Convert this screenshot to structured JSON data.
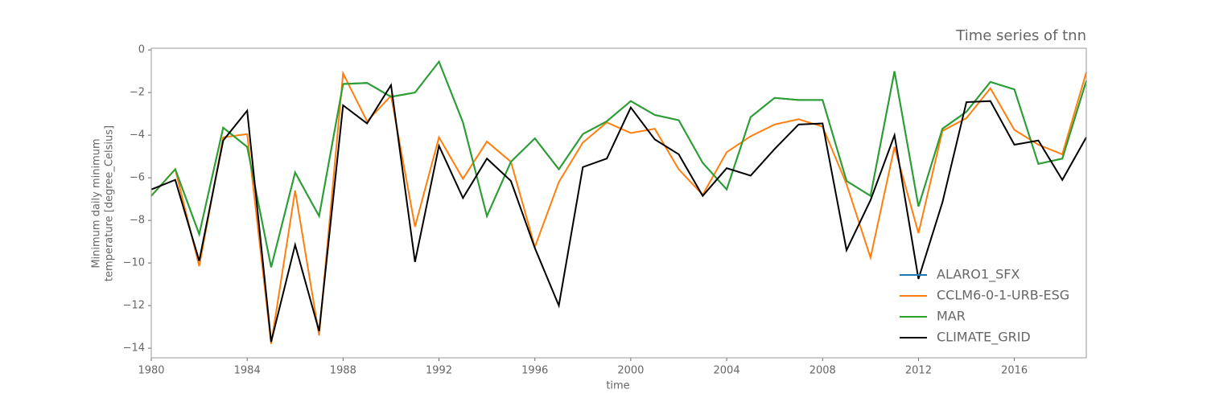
{
  "chart_data": {
    "type": "line",
    "title": "Time series of tnn",
    "xlabel": "time",
    "ylabel": [
      "Minimum daily minimum",
      "temperature [degree_Celsius]"
    ],
    "x": [
      1980,
      1981,
      1982,
      1983,
      1984,
      1985,
      1986,
      1987,
      1988,
      1989,
      1990,
      1991,
      1992,
      1993,
      1994,
      1995,
      1996,
      1997,
      1998,
      1999,
      2000,
      2001,
      2002,
      2003,
      2004,
      2005,
      2006,
      2007,
      2008,
      2009,
      2010,
      2011,
      2012,
      2013,
      2014,
      2015,
      2016,
      2017,
      2018,
      2019
    ],
    "series": [
      {
        "name": "ALARO1_SFX",
        "color": "#1f77b4",
        "values": [
          -6.85,
          -5.6,
          -8.65,
          -3.65,
          -4.55,
          -10.2,
          -5.75,
          -7.8,
          -1.6,
          -1.55,
          -2.2,
          -2.0,
          -0.55,
          -3.4,
          -7.8,
          -5.25,
          -4.15,
          -5.6,
          -3.95,
          -3.35,
          -2.4,
          -3.05,
          -3.3,
          -5.3,
          -6.55,
          -3.15,
          -2.25,
          -2.35,
          -2.35,
          -6.15,
          -6.85,
          -1.0,
          -7.35,
          -3.7,
          -2.9,
          -1.5,
          -1.85,
          -5.35,
          -5.1,
          -1.45
        ]
      },
      {
        "name": "CCLM6-0-1-URB-ESG",
        "color": "#ff7f0e",
        "values": [
          -6.85,
          -5.6,
          -10.15,
          -4.1,
          -3.95,
          -13.8,
          -6.6,
          -13.4,
          -1.1,
          -3.35,
          -2.15,
          -8.3,
          -4.1,
          -6.05,
          -4.3,
          -5.25,
          -9.25,
          -6.2,
          -4.35,
          -3.4,
          -3.9,
          -3.7,
          -5.6,
          -6.8,
          -4.8,
          -4.05,
          -3.5,
          -3.25,
          -3.6,
          -6.3,
          -9.75,
          -4.55,
          -8.6,
          -3.8,
          -3.2,
          -1.8,
          -3.75,
          -4.45,
          -4.9,
          -1.05
        ]
      },
      {
        "name": "MAR",
        "color": "#2ca02c",
        "values": [
          -6.85,
          -5.6,
          -8.65,
          -3.65,
          -4.55,
          -10.2,
          -5.75,
          -7.8,
          -1.6,
          -1.55,
          -2.2,
          -2.0,
          -0.55,
          -3.4,
          -7.8,
          -5.25,
          -4.15,
          -5.6,
          -3.95,
          -3.35,
          -2.4,
          -3.05,
          -3.3,
          -5.3,
          -6.55,
          -3.15,
          -2.25,
          -2.35,
          -2.35,
          -6.15,
          -6.85,
          -1.0,
          -7.35,
          -3.7,
          -2.9,
          -1.5,
          -1.85,
          -5.35,
          -5.1,
          -1.45
        ]
      },
      {
        "name": "CLIMATE_GRID",
        "color": "#000000",
        "values": [
          -6.55,
          -6.1,
          -9.9,
          -4.25,
          -2.85,
          -13.7,
          -9.15,
          -13.2,
          -2.6,
          -3.45,
          -1.65,
          -9.95,
          -4.5,
          -6.95,
          -5.1,
          -6.15,
          -9.3,
          -12.0,
          -5.5,
          -5.1,
          -2.7,
          -4.2,
          -4.9,
          -6.85,
          -5.55,
          -5.9,
          -4.65,
          -3.5,
          -3.45,
          -9.4,
          -7.05,
          -4.0,
          -10.75,
          -7.15,
          -2.45,
          -2.4,
          -4.45,
          -4.25,
          -6.1,
          -4.1
        ]
      }
    ],
    "xlim": [
      1980,
      2019
    ],
    "xticks": [
      1980,
      1984,
      1988,
      1992,
      1996,
      2000,
      2004,
      2008,
      2012,
      2016
    ],
    "ylim": [
      -14.45,
      0.08
    ],
    "yticks": [
      0,
      {
        "value": -2,
        "label": "−2"
      },
      {
        "value": -4,
        "label": "−4"
      },
      {
        "value": -6,
        "label": "−6"
      },
      {
        "value": -8,
        "label": "−8"
      },
      {
        "value": -10,
        "label": "−10"
      },
      {
        "value": -12,
        "label": "−12"
      },
      {
        "value": -14,
        "label": "−14"
      }
    ],
    "legend": "lower right"
  }
}
